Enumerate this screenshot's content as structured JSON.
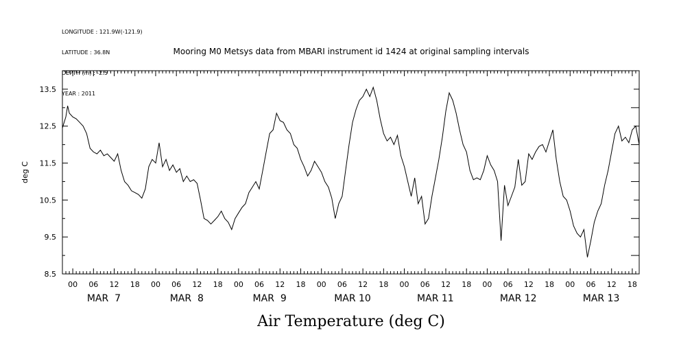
{
  "header": {
    "longitude": "LONGITUDE : 121.9W(-121.9)",
    "latitude": "LATITUDE : 36.8N",
    "depth": "DEPTH (m) : -2.5",
    "year": "YEAR : 2011"
  },
  "chart_data": {
    "type": "line",
    "title": "Mooring M0 Metsys data from MBARI instrument id 1424 at original sampling intervals",
    "xlabel": "Air Temperature (deg C)",
    "ylabel": "deg C",
    "xlim": [
      "2011-03-06T21:00",
      "2011-03-13T20:00"
    ],
    "ylim": [
      8.5,
      14.0
    ],
    "yticks": [
      8.5,
      9.5,
      10.5,
      11.5,
      12.5,
      13.5
    ],
    "yticks_minor": [
      9.0,
      10.0,
      11.0,
      12.0,
      13.0
    ],
    "hour_ticks": [
      "00",
      "06",
      "12",
      "18",
      "00",
      "06",
      "12",
      "18",
      "00",
      "06",
      "12",
      "18",
      "00",
      "06",
      "12",
      "18",
      "00",
      "06",
      "12",
      "18",
      "00",
      "06",
      "12",
      "18",
      "00",
      "06",
      "12",
      "18"
    ],
    "day_labels": [
      "MAR  7",
      "MAR  8",
      "MAR  9",
      "MAR 10",
      "MAR 11",
      "MAR 12",
      "MAR 13"
    ],
    "grid": false,
    "series": [
      {
        "points": [
          [
            "2011-03-06T21:00",
            12.45
          ],
          [
            "2011-03-06T21:30",
            12.6
          ],
          [
            "2011-03-06T22:00",
            12.75
          ],
          [
            "2011-03-06T22:30",
            13.05
          ],
          [
            "2011-03-06T23:00",
            12.85
          ],
          [
            "2011-03-07T00:00",
            12.75
          ],
          [
            "2011-03-07T01:00",
            12.7
          ],
          [
            "2011-03-07T02:00",
            12.6
          ],
          [
            "2011-03-07T03:00",
            12.5
          ],
          [
            "2011-03-07T04:00",
            12.3
          ],
          [
            "2011-03-07T05:00",
            11.9
          ],
          [
            "2011-03-07T06:00",
            11.8
          ],
          [
            "2011-03-07T07:00",
            11.75
          ],
          [
            "2011-03-07T08:00",
            11.85
          ],
          [
            "2011-03-07T09:00",
            11.7
          ],
          [
            "2011-03-07T10:00",
            11.75
          ],
          [
            "2011-03-07T11:00",
            11.65
          ],
          [
            "2011-03-07T12:00",
            11.55
          ],
          [
            "2011-03-07T13:00",
            11.75
          ],
          [
            "2011-03-07T14:00",
            11.3
          ],
          [
            "2011-03-07T15:00",
            11.0
          ],
          [
            "2011-03-07T16:00",
            10.9
          ],
          [
            "2011-03-07T17:00",
            10.75
          ],
          [
            "2011-03-07T18:00",
            10.7
          ],
          [
            "2011-03-07T19:00",
            10.65
          ],
          [
            "2011-03-07T20:00",
            10.55
          ],
          [
            "2011-03-07T21:00",
            10.8
          ],
          [
            "2011-03-07T22:00",
            11.4
          ],
          [
            "2011-03-07T23:00",
            11.6
          ],
          [
            "2011-03-08T00:00",
            11.5
          ],
          [
            "2011-03-08T01:00",
            12.05
          ],
          [
            "2011-03-08T02:00",
            11.4
          ],
          [
            "2011-03-08T03:00",
            11.6
          ],
          [
            "2011-03-08T04:00",
            11.3
          ],
          [
            "2011-03-08T05:00",
            11.45
          ],
          [
            "2011-03-08T06:00",
            11.25
          ],
          [
            "2011-03-08T07:00",
            11.35
          ],
          [
            "2011-03-08T08:00",
            11.0
          ],
          [
            "2011-03-08T09:00",
            11.15
          ],
          [
            "2011-03-08T10:00",
            11.0
          ],
          [
            "2011-03-08T11:00",
            11.05
          ],
          [
            "2011-03-08T12:00",
            10.95
          ],
          [
            "2011-03-08T13:00",
            10.5
          ],
          [
            "2011-03-08T14:00",
            10.0
          ],
          [
            "2011-03-08T15:00",
            9.95
          ],
          [
            "2011-03-08T16:00",
            9.85
          ],
          [
            "2011-03-08T17:00",
            9.95
          ],
          [
            "2011-03-08T18:00",
            10.05
          ],
          [
            "2011-03-08T19:00",
            10.2
          ],
          [
            "2011-03-08T20:00",
            10.0
          ],
          [
            "2011-03-08T21:00",
            9.9
          ],
          [
            "2011-03-08T22:00",
            9.7
          ],
          [
            "2011-03-08T23:00",
            10.0
          ],
          [
            "2011-03-09T00:00",
            10.15
          ],
          [
            "2011-03-09T01:00",
            10.3
          ],
          [
            "2011-03-09T02:00",
            10.4
          ],
          [
            "2011-03-09T03:00",
            10.7
          ],
          [
            "2011-03-09T04:00",
            10.85
          ],
          [
            "2011-03-09T05:00",
            11.0
          ],
          [
            "2011-03-09T06:00",
            10.8
          ],
          [
            "2011-03-09T07:00",
            11.3
          ],
          [
            "2011-03-09T08:00",
            11.8
          ],
          [
            "2011-03-09T09:00",
            12.3
          ],
          [
            "2011-03-09T10:00",
            12.4
          ],
          [
            "2011-03-09T11:00",
            12.85
          ],
          [
            "2011-03-09T12:00",
            12.65
          ],
          [
            "2011-03-09T13:00",
            12.6
          ],
          [
            "2011-03-09T14:00",
            12.4
          ],
          [
            "2011-03-09T15:00",
            12.3
          ],
          [
            "2011-03-09T16:00",
            12.0
          ],
          [
            "2011-03-09T17:00",
            11.9
          ],
          [
            "2011-03-09T18:00",
            11.6
          ],
          [
            "2011-03-09T19:00",
            11.4
          ],
          [
            "2011-03-09T20:00",
            11.15
          ],
          [
            "2011-03-09T21:00",
            11.3
          ],
          [
            "2011-03-09T22:00",
            11.55
          ],
          [
            "2011-03-09T23:00",
            11.4
          ],
          [
            "2011-03-10T00:00",
            11.25
          ],
          [
            "2011-03-10T01:00",
            11.0
          ],
          [
            "2011-03-10T02:00",
            10.85
          ],
          [
            "2011-03-10T03:00",
            10.55
          ],
          [
            "2011-03-10T04:00",
            10.0
          ],
          [
            "2011-03-10T05:00",
            10.4
          ],
          [
            "2011-03-10T06:00",
            10.6
          ],
          [
            "2011-03-10T07:00",
            11.3
          ],
          [
            "2011-03-10T08:00",
            12.0
          ],
          [
            "2011-03-10T09:00",
            12.6
          ],
          [
            "2011-03-10T10:00",
            12.95
          ],
          [
            "2011-03-10T11:00",
            13.2
          ],
          [
            "2011-03-10T12:00",
            13.3
          ],
          [
            "2011-03-10T13:00",
            13.5
          ],
          [
            "2011-03-10T14:00",
            13.3
          ],
          [
            "2011-03-10T15:00",
            13.55
          ],
          [
            "2011-03-10T16:00",
            13.2
          ],
          [
            "2011-03-10T17:00",
            12.7
          ],
          [
            "2011-03-10T18:00",
            12.3
          ],
          [
            "2011-03-10T19:00",
            12.1
          ],
          [
            "2011-03-10T20:00",
            12.2
          ],
          [
            "2011-03-10T21:00",
            12.0
          ],
          [
            "2011-03-10T22:00",
            12.25
          ],
          [
            "2011-03-10T23:00",
            11.7
          ],
          [
            "2011-03-11T00:00",
            11.4
          ],
          [
            "2011-03-11T01:00",
            11.0
          ],
          [
            "2011-03-11T02:00",
            10.6
          ],
          [
            "2011-03-11T03:00",
            11.1
          ],
          [
            "2011-03-11T04:00",
            10.4
          ],
          [
            "2011-03-11T05:00",
            10.6
          ],
          [
            "2011-03-11T06:00",
            9.85
          ],
          [
            "2011-03-11T07:00",
            10.0
          ],
          [
            "2011-03-11T08:00",
            10.6
          ],
          [
            "2011-03-11T09:00",
            11.1
          ],
          [
            "2011-03-11T10:00",
            11.6
          ],
          [
            "2011-03-11T11:00",
            12.2
          ],
          [
            "2011-03-11T12:00",
            12.9
          ],
          [
            "2011-03-11T13:00",
            13.4
          ],
          [
            "2011-03-11T14:00",
            13.2
          ],
          [
            "2011-03-11T15:00",
            12.85
          ],
          [
            "2011-03-11T16:00",
            12.4
          ],
          [
            "2011-03-11T17:00",
            12.0
          ],
          [
            "2011-03-11T18:00",
            11.8
          ],
          [
            "2011-03-11T19:00",
            11.3
          ],
          [
            "2011-03-11T20:00",
            11.05
          ],
          [
            "2011-03-11T21:00",
            11.1
          ],
          [
            "2011-03-11T22:00",
            11.05
          ],
          [
            "2011-03-11T23:00",
            11.3
          ],
          [
            "2011-03-12T00:00",
            11.7
          ],
          [
            "2011-03-12T01:00",
            11.45
          ],
          [
            "2011-03-12T02:00",
            11.3
          ],
          [
            "2011-03-12T03:00",
            11.0
          ],
          [
            "2011-03-12T04:00",
            9.4
          ],
          [
            "2011-03-12T05:00",
            10.9
          ],
          [
            "2011-03-12T06:00",
            10.35
          ],
          [
            "2011-03-12T07:00",
            10.6
          ],
          [
            "2011-03-12T08:00",
            10.85
          ],
          [
            "2011-03-12T09:00",
            11.6
          ],
          [
            "2011-03-12T10:00",
            10.9
          ],
          [
            "2011-03-12T11:00",
            11.0
          ],
          [
            "2011-03-12T12:00",
            11.75
          ],
          [
            "2011-03-12T13:00",
            11.6
          ],
          [
            "2011-03-12T14:00",
            11.8
          ],
          [
            "2011-03-12T15:00",
            11.95
          ],
          [
            "2011-03-12T16:00",
            12.0
          ],
          [
            "2011-03-12T17:00",
            11.8
          ],
          [
            "2011-03-12T18:00",
            12.1
          ],
          [
            "2011-03-12T19:00",
            12.4
          ],
          [
            "2011-03-12T20:00",
            11.6
          ],
          [
            "2011-03-12T21:00",
            11.0
          ],
          [
            "2011-03-12T22:00",
            10.6
          ],
          [
            "2011-03-12T23:00",
            10.5
          ],
          [
            "2011-03-13T00:00",
            10.2
          ],
          [
            "2011-03-13T01:00",
            9.8
          ],
          [
            "2011-03-13T02:00",
            9.6
          ],
          [
            "2011-03-13T03:00",
            9.5
          ],
          [
            "2011-03-13T04:00",
            9.7
          ],
          [
            "2011-03-13T05:00",
            8.95
          ],
          [
            "2011-03-13T06:00",
            9.4
          ],
          [
            "2011-03-13T07:00",
            9.9
          ],
          [
            "2011-03-13T08:00",
            10.2
          ],
          [
            "2011-03-13T09:00",
            10.4
          ],
          [
            "2011-03-13T10:00",
            10.9
          ],
          [
            "2011-03-13T11:00",
            11.3
          ],
          [
            "2011-03-13T12:00",
            11.8
          ],
          [
            "2011-03-13T13:00",
            12.3
          ],
          [
            "2011-03-13T14:00",
            12.5
          ],
          [
            "2011-03-13T15:00",
            12.1
          ],
          [
            "2011-03-13T16:00",
            12.2
          ],
          [
            "2011-03-13T17:00",
            12.05
          ],
          [
            "2011-03-13T18:00",
            12.4
          ],
          [
            "2011-03-13T19:00",
            12.5
          ],
          [
            "2011-03-13T20:00",
            12.0
          ]
        ]
      }
    ]
  }
}
